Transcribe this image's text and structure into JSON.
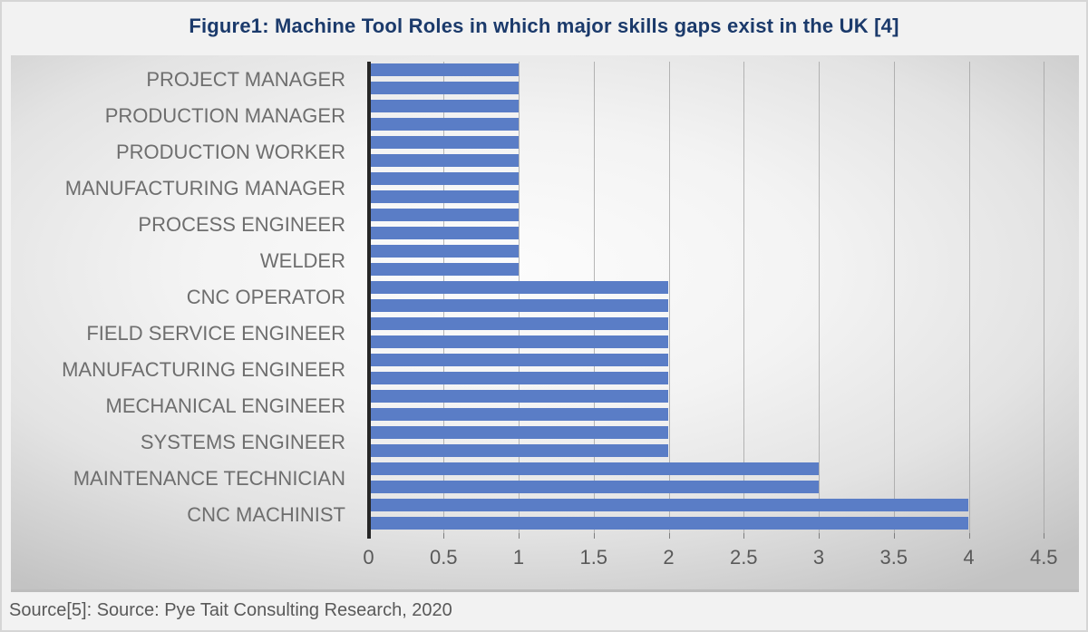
{
  "title": "Figure1: Machine Tool Roles in which major skills gaps exist in the UK [4]",
  "source": "Source[5]: Source: Pye Tait Consulting Research, 2020",
  "chart_data": {
    "type": "bar",
    "orientation": "horizontal",
    "title": "Figure1: Machine Tool Roles in which major skills gaps exist in the UK [4]",
    "categories": [
      "PROJECT MANAGER",
      "PRODUCTION MANAGER",
      "PRODUCTION WORKER",
      "MANUFACTURING MANAGER",
      "PROCESS ENGINEER",
      "WELDER",
      "CNC OPERATOR",
      "FIELD SERVICE ENGINEER",
      "MANUFACTURING ENGINEER",
      "MECHANICAL ENGINEER",
      "SYSTEMS ENGINEER",
      "MAINTENANCE TECHNICIAN",
      "CNC MACHINIST"
    ],
    "values": [
      1,
      1,
      1,
      1,
      1,
      1,
      2,
      2,
      2,
      2,
      2,
      3,
      4
    ],
    "xlabel": "",
    "ylabel": "",
    "xlim": [
      0,
      4.5
    ],
    "xticks": [
      "0",
      "0.5",
      "1",
      "1.5",
      "2",
      "2.5",
      "3",
      "3.5",
      "4",
      "4.5"
    ],
    "grid": "vertical-gridlines-every-0.5",
    "legend": "none",
    "bar_style": "each category drawn as two thin horizontal stripes (striped bar)"
  },
  "colors": {
    "bar": "#5a7dc6",
    "title_text": "#1b3a6b",
    "category_label_text": "#6e6e6e",
    "tick_label_text": "#595959",
    "axis_line": "#262626",
    "gridline": "#9f9f9f",
    "chart_bg_center": "#fcfcfc",
    "chart_bg_edge": "#c3c3c3",
    "frame_bg": "#f2f2f2",
    "source_text": "#595959"
  }
}
